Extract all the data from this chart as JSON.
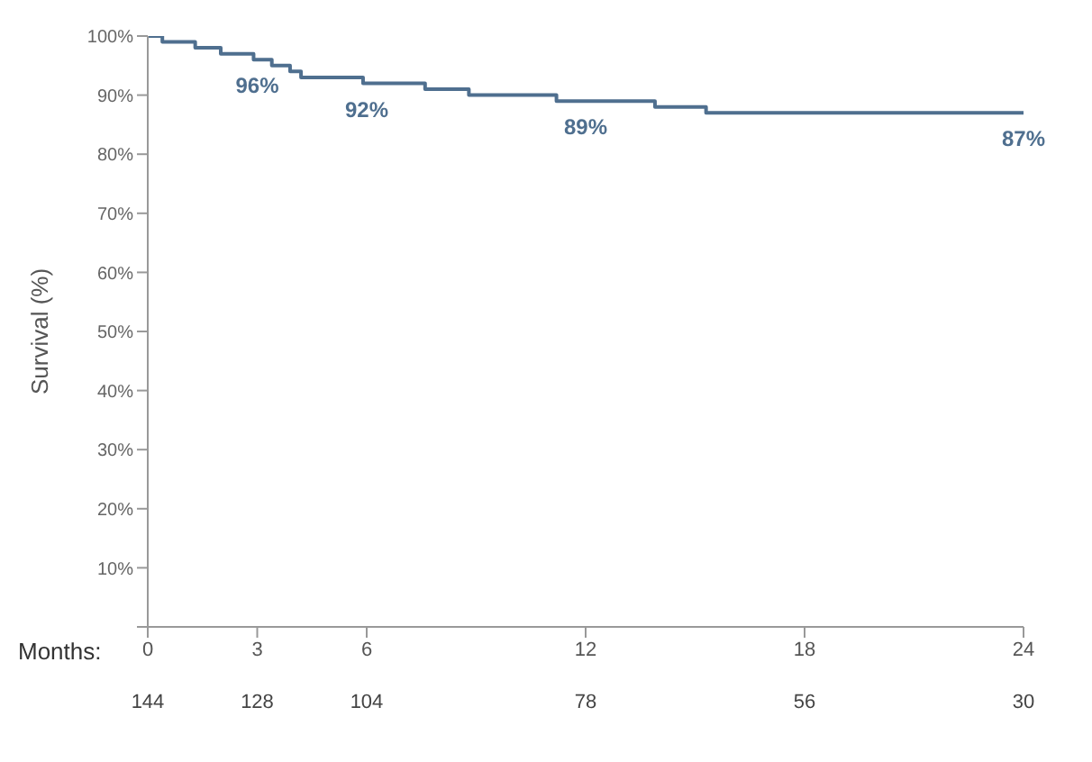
{
  "chart_data": {
    "type": "step",
    "ylabel": "Survival (%)",
    "xlabel": "Months:",
    "color": "#4f6f8f",
    "x": [
      0,
      0.4,
      1.3,
      2.0,
      2.9,
      3.4,
      3.9,
      4.2,
      5.9,
      7.6,
      8.8,
      11.2,
      13.9,
      15.3,
      24
    ],
    "values": [
      100,
      99,
      98,
      97,
      96,
      95,
      94,
      93,
      92,
      91,
      90,
      89,
      88,
      87,
      87
    ],
    "xlim": [
      0,
      24
    ],
    "xticks": [
      0,
      3,
      6,
      12,
      18,
      24
    ],
    "ylim": [
      0,
      100
    ],
    "yticks": [
      {
        "value": 0,
        "label": null
      },
      {
        "value": 10,
        "label": "10%"
      },
      {
        "value": 20,
        "label": "20%"
      },
      {
        "value": 30,
        "label": "30%"
      },
      {
        "value": 40,
        "label": "40%"
      },
      {
        "value": 50,
        "label": "50%"
      },
      {
        "value": 60,
        "label": "60%"
      },
      {
        "value": 70,
        "label": "70%"
      },
      {
        "value": 80,
        "label": "80%"
      },
      {
        "value": 90,
        "label": "90%"
      },
      {
        "value": 100,
        "label": "100%"
      }
    ],
    "grid": false,
    "marker": "none",
    "line_style": "solid",
    "annotations": [
      {
        "text": "96%",
        "x": 3,
        "y": 96
      },
      {
        "text": "92%",
        "x": 6,
        "y": 92
      },
      {
        "text": "89%",
        "x": 12,
        "y": 89
      },
      {
        "text": "87%",
        "x": 24,
        "y": 87
      },
      "144",
      "128",
      "104",
      "78",
      "56",
      "30"
    ]
  }
}
